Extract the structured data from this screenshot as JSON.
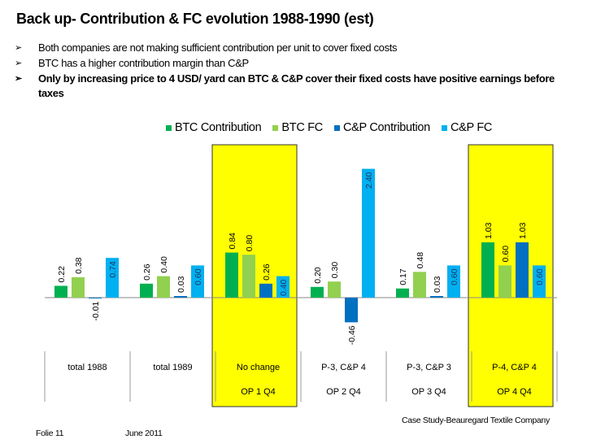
{
  "slide": {
    "title": "Back up- Contribution & FC evolution 1988-1990 (est)",
    "bullets": [
      {
        "text": "Both companies are not making sufficient contribution per unit to cover fixed costs",
        "bold": false
      },
      {
        "text": "BTC has a higher contribution margin than C&P",
        "bold": false
      },
      {
        "text": "Only by increasing price to 4 USD/ yard can BTC & C&P  cover their fixed costs have positive earnings before taxes",
        "bold": true
      }
    ],
    "bullet_icon": "arrowhead-bullet-icon",
    "bullet_glyph": "➢",
    "footer": {
      "source": "Case Study-Beauregard Textile Company",
      "slide_number": "Folie 11",
      "date": "June 2011"
    }
  },
  "chart_data": {
    "type": "bar",
    "title": "",
    "xlabel": "",
    "ylabel": "",
    "ylim": [
      -0.7,
      2.85
    ],
    "grid": false,
    "legend_position": "top-right",
    "categories": [
      {
        "line1": "total 1988",
        "line2": "",
        "highlight": false
      },
      {
        "line1": "total 1989",
        "line2": "",
        "highlight": false
      },
      {
        "line1": "No change",
        "line2": "OP 1 Q4",
        "highlight": true
      },
      {
        "line1": "P-3, C&P 4",
        "line2": "OP 2 Q4",
        "highlight": false
      },
      {
        "line1": "P-3, C&P 3",
        "line2": "OP 3 Q4",
        "highlight": false
      },
      {
        "line1": "P-4, C&P 4",
        "line2": "OP 4 Q4",
        "highlight": true
      }
    ],
    "series": [
      {
        "name": "BTC Contribution",
        "color": "#00b050",
        "values": [
          0.22,
          0.26,
          0.84,
          0.2,
          0.17,
          1.03
        ]
      },
      {
        "name": "BTC FC",
        "color": "#92d050",
        "values": [
          0.38,
          0.4,
          0.8,
          0.3,
          0.48,
          0.6
        ]
      },
      {
        "name": "C&P Contribution",
        "color": "#0070c0",
        "values": [
          -0.01,
          0.03,
          0.26,
          -0.46,
          0.03,
          1.03
        ]
      },
      {
        "name": "C&P FC",
        "color": "#00b0f0",
        "values": [
          0.74,
          0.6,
          0.4,
          2.4,
          0.6,
          0.6
        ]
      }
    ],
    "highlight_color": "#ffff00"
  }
}
